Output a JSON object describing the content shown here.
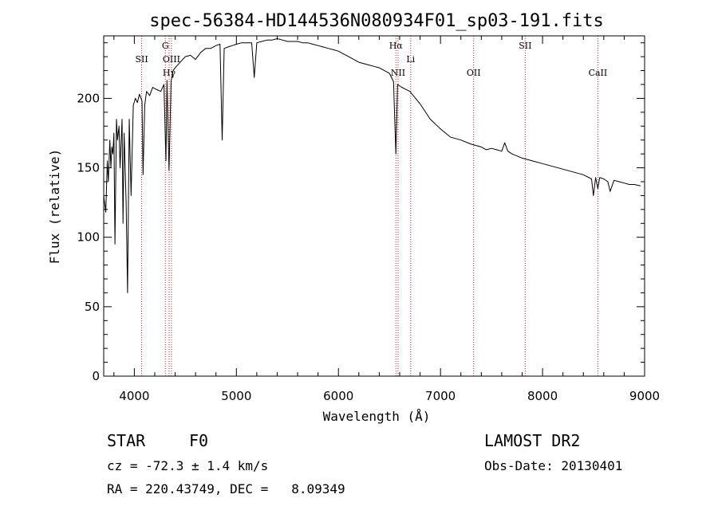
{
  "chart_data": {
    "type": "line",
    "title": "spec-56384-HD144536N080934F01_sp03-191.fits",
    "xlabel": "Wavelength (Å)",
    "ylabel": "Flux (relative)",
    "xlim": [
      3700,
      9000
    ],
    "ylim": [
      0,
      245
    ],
    "xticks": [
      4000,
      5000,
      6000,
      7000,
      8000,
      9000
    ],
    "yticks": [
      0,
      50,
      100,
      150,
      200
    ],
    "grid": false,
    "series": [
      {
        "color": "#000000",
        "x": [
          3700,
          3720,
          3735,
          3745,
          3760,
          3770,
          3780,
          3790,
          3800,
          3810,
          3825,
          3835,
          3850,
          3860,
          3880,
          3889,
          3900,
          3920,
          3934,
          3950,
          3968,
          3990,
          4010,
          4030,
          4050,
          4075,
          4085,
          4102,
          4120,
          4150,
          4180,
          4200,
          4230,
          4260,
          4290,
          4310,
          4320,
          4340,
          4360,
          4380,
          4400,
          4450,
          4500,
          4550,
          4600,
          4650,
          4700,
          4750,
          4800,
          4840,
          4861,
          4880,
          4920,
          4960,
          5000,
          5050,
          5100,
          5150,
          5175,
          5200,
          5250,
          5300,
          5350,
          5400,
          5450,
          5500,
          5550,
          5600,
          5650,
          5700,
          5750,
          5800,
          5850,
          5900,
          5950,
          6000,
          6050,
          6100,
          6150,
          6200,
          6250,
          6300,
          6350,
          6400,
          6450,
          6500,
          6540,
          6563,
          6580,
          6620,
          6700,
          6800,
          6900,
          7000,
          7100,
          7200,
          7300,
          7400,
          7450,
          7500,
          7550,
          7600,
          7630,
          7660,
          7700,
          7800,
          7900,
          8000,
          8100,
          8200,
          8300,
          8400,
          8480,
          8498,
          8520,
          8542,
          8560,
          8600,
          8640,
          8662,
          8700,
          8750,
          8800,
          8850,
          8900,
          8960
        ],
        "y": [
          130,
          118,
          155,
          140,
          170,
          150,
          165,
          160,
          175,
          95,
          185,
          170,
          180,
          150,
          185,
          110,
          175,
          125,
          60,
          185,
          130,
          195,
          200,
          197,
          203,
          198,
          145,
          195,
          205,
          202,
          208,
          207,
          206,
          205,
          210,
          155,
          213,
          148,
          212,
          220,
          222,
          226,
          230,
          231,
          228,
          233,
          236,
          236,
          238,
          239,
          170,
          236,
          237,
          238,
          239,
          240,
          240,
          240,
          215,
          240,
          241,
          242,
          242,
          243,
          242,
          241,
          241,
          241,
          240,
          240,
          239,
          238,
          237,
          236,
          235,
          234,
          232,
          230,
          228,
          226,
          225,
          224,
          223,
          222,
          220,
          218,
          212,
          160,
          210,
          208,
          205,
          196,
          185,
          178,
          172,
          170,
          167,
          165,
          163,
          164,
          163,
          162,
          168,
          162,
          160,
          157,
          155,
          153,
          151,
          149,
          147,
          145,
          142,
          130,
          143,
          135,
          143,
          142,
          140,
          133,
          141,
          140,
          139,
          138,
          138,
          137
        ]
      }
    ],
    "lines": [
      {
        "name": "SII",
        "x": 4072,
        "label_row": 2
      },
      {
        "name": "Hγ",
        "x": 4341,
        "label_row": 3
      },
      {
        "name": "G",
        "x": 4304,
        "label_row": 1
      },
      {
        "name": "OIII",
        "x": 4364,
        "label_row": 2
      },
      {
        "name": "Hα",
        "x": 6563,
        "label_row": 1
      },
      {
        "name": "NII",
        "x": 6584,
        "label_row": 3
      },
      {
        "name": "Li",
        "x": 6708,
        "label_row": 2
      },
      {
        "name": "OII",
        "x": 7325,
        "label_row": 3
      },
      {
        "name": "SII",
        "x": 7830,
        "label_row": 1
      },
      {
        "name": "CaII",
        "x": 8542,
        "label_row": 3
      }
    ],
    "line_marker_color": "#cc2222"
  },
  "info": {
    "object_type": "STAR",
    "spectral_class": "F0",
    "survey": "LAMOST DR2",
    "redshift_text": "cz = -72.3 ± 1.4 km/s",
    "obs_date_text": "Obs-Date: 20130401",
    "coords_text": "RA = 220.43749, DEC =   8.09349"
  }
}
